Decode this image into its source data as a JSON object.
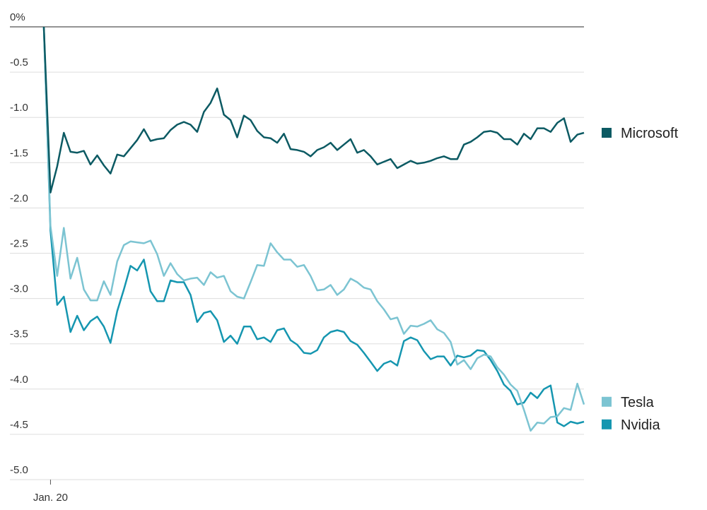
{
  "chart_data": {
    "type": "line",
    "categories": [
      null,
      "Jan. 20",
      null,
      null,
      null,
      null,
      null,
      null,
      null,
      null,
      null,
      null,
      null,
      null,
      null,
      null,
      null,
      null,
      null,
      null,
      null,
      null,
      null,
      null,
      null,
      null,
      null,
      null,
      null,
      null,
      null,
      null,
      null,
      null,
      null,
      null,
      null,
      null,
      null,
      null,
      null,
      null,
      null,
      null,
      null,
      null,
      null,
      null,
      null,
      null,
      null,
      null,
      null,
      null,
      null,
      null,
      null,
      null,
      null,
      null,
      null,
      null,
      null,
      null,
      null,
      null,
      null,
      null,
      null,
      null,
      null,
      null,
      null,
      null,
      null,
      null,
      null,
      null,
      null,
      null,
      null,
      null
    ],
    "series": [
      {
        "name": "Microsoft",
        "color": "#0c5a63",
        "values": [
          0,
          -1.83,
          -1.54,
          -1.17,
          -1.38,
          -1.39,
          -1.37,
          -1.52,
          -1.42,
          -1.53,
          -1.62,
          -1.41,
          -1.43,
          -1.34,
          -1.25,
          -1.13,
          -1.26,
          -1.24,
          -1.23,
          -1.14,
          -1.08,
          -1.05,
          -1.08,
          -1.16,
          -0.94,
          -0.84,
          -0.68,
          -0.97,
          -1.03,
          -1.22,
          -0.98,
          -1.03,
          -1.15,
          -1.22,
          -1.23,
          -1.28,
          -1.18,
          -1.35,
          -1.36,
          -1.38,
          -1.43,
          -1.36,
          -1.33,
          -1.28,
          -1.36,
          -1.3,
          -1.24,
          -1.39,
          -1.36,
          -1.43,
          -1.52,
          -1.49,
          -1.46,
          -1.56,
          -1.52,
          -1.48,
          -1.51,
          -1.5,
          -1.48,
          -1.45,
          -1.43,
          -1.46,
          -1.46,
          -1.3,
          -1.27,
          -1.22,
          -1.16,
          -1.15,
          -1.17,
          -1.24,
          -1.24,
          -1.3,
          -1.18,
          -1.24,
          -1.12,
          -1.12,
          -1.16,
          -1.06,
          -1.01,
          -1.27,
          -1.19,
          -1.17
        ]
      },
      {
        "name": "Tesla",
        "color": "#7cc4d2",
        "values": [
          0,
          -2.2,
          -2.75,
          -2.22,
          -2.78,
          -2.55,
          -2.9,
          -3.02,
          -3.02,
          -2.81,
          -2.96,
          -2.59,
          -2.41,
          -2.37,
          -2.38,
          -2.39,
          -2.36,
          -2.51,
          -2.75,
          -2.61,
          -2.73,
          -2.8,
          -2.78,
          -2.77,
          -2.85,
          -2.71,
          -2.77,
          -2.75,
          -2.92,
          -2.98,
          -3.0,
          -2.82,
          -2.63,
          -2.64,
          -2.39,
          -2.49,
          -2.57,
          -2.57,
          -2.65,
          -2.63,
          -2.75,
          -2.91,
          -2.9,
          -2.85,
          -2.96,
          -2.9,
          -2.78,
          -2.82,
          -2.88,
          -2.9,
          -3.03,
          -3.12,
          -3.23,
          -3.21,
          -3.39,
          -3.3,
          -3.31,
          -3.28,
          -3.24,
          -3.34,
          -3.38,
          -3.48,
          -3.73,
          -3.68,
          -3.78,
          -3.66,
          -3.62,
          -3.64,
          -3.76,
          -3.84,
          -3.95,
          -4.02,
          -4.23,
          -4.46,
          -4.37,
          -4.38,
          -4.31,
          -4.3,
          -4.21,
          -4.23,
          -3.94,
          -4.17
        ]
      },
      {
        "name": "Nvidia",
        "color": "#1596b0",
        "values": [
          0,
          -2.25,
          -3.07,
          -2.98,
          -3.37,
          -3.19,
          -3.35,
          -3.25,
          -3.2,
          -3.31,
          -3.49,
          -3.14,
          -2.9,
          -2.64,
          -2.69,
          -2.57,
          -2.92,
          -3.03,
          -3.03,
          -2.8,
          -2.82,
          -2.82,
          -2.96,
          -3.26,
          -3.16,
          -3.14,
          -3.24,
          -3.48,
          -3.41,
          -3.5,
          -3.31,
          -3.31,
          -3.45,
          -3.43,
          -3.48,
          -3.35,
          -3.33,
          -3.46,
          -3.51,
          -3.6,
          -3.61,
          -3.57,
          -3.43,
          -3.37,
          -3.35,
          -3.37,
          -3.47,
          -3.51,
          -3.6,
          -3.7,
          -3.8,
          -3.72,
          -3.69,
          -3.74,
          -3.47,
          -3.43,
          -3.46,
          -3.58,
          -3.67,
          -3.64,
          -3.64,
          -3.74,
          -3.63,
          -3.65,
          -3.63,
          -3.57,
          -3.58,
          -3.68,
          -3.8,
          -3.95,
          -4.02,
          -4.17,
          -4.15,
          -4.04,
          -4.1,
          -4.0,
          -3.96,
          -4.37,
          -4.41,
          -4.36,
          -4.38,
          -4.36
        ]
      }
    ],
    "ylim": [
      -5,
      0
    ],
    "yticks": [
      {
        "value": 0,
        "label": "0%"
      },
      -0.5,
      {
        "value": -1,
        "label": "-1.0"
      },
      -1.5,
      {
        "value": -2,
        "label": "-2.0"
      },
      -2.5,
      {
        "value": -3,
        "label": "-3.0"
      },
      -3.5,
      {
        "value": -4,
        "label": "-4.0"
      },
      -4.5,
      {
        "value": -5,
        "label": "-5.0"
      }
    ],
    "grid": true,
    "legend": "right"
  }
}
